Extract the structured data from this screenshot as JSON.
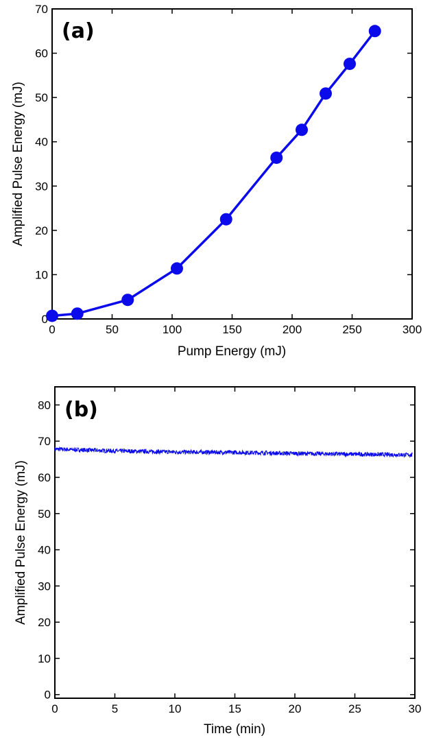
{
  "chart_data": [
    {
      "type": "line",
      "panel_label": "(a)",
      "xlabel": "Pump Energy (mJ)",
      "ylabel": "Amplified Pulse Energy (mJ)",
      "xlim": [
        0,
        300
      ],
      "ylim": [
        0,
        70
      ],
      "xticks": [
        "0",
        "50",
        "100",
        "150",
        "200",
        "250",
        "300"
      ],
      "yticks": [
        "0",
        "10",
        "20",
        "30",
        "40",
        "50",
        "60",
        "70"
      ],
      "series": [
        {
          "color": "#0a0aeb",
          "markers": true,
          "x": [
            0,
            21,
            63,
            104,
            145,
            187,
            208,
            228,
            248,
            269
          ],
          "y": [
            0.7,
            1.2,
            4.3,
            11.4,
            22.5,
            36.4,
            42.7,
            50.9,
            57.6,
            65.0
          ]
        }
      ],
      "grid": false
    },
    {
      "type": "line",
      "panel_label": "(b)",
      "xlabel": "Time (min)",
      "ylabel": "Amplified Pulse Energy (mJ)",
      "xlim": [
        0,
        30
      ],
      "ylim": [
        -1,
        85
      ],
      "xticks": [
        "0",
        "5",
        "10",
        "15",
        "20",
        "25",
        "30"
      ],
      "yticks": [
        "0",
        "10",
        "20",
        "30",
        "40",
        "50",
        "60",
        "70",
        "80"
      ],
      "series": [
        {
          "color": "#0a0aeb",
          "markers": false,
          "x": [
            0,
            5,
            10,
            15,
            20,
            25,
            29.8
          ],
          "y": [
            67.8,
            67.3,
            67.0,
            66.9,
            66.6,
            66.4,
            66.2
          ],
          "noise_amplitude": 0.6
        }
      ],
      "grid": false
    }
  ]
}
